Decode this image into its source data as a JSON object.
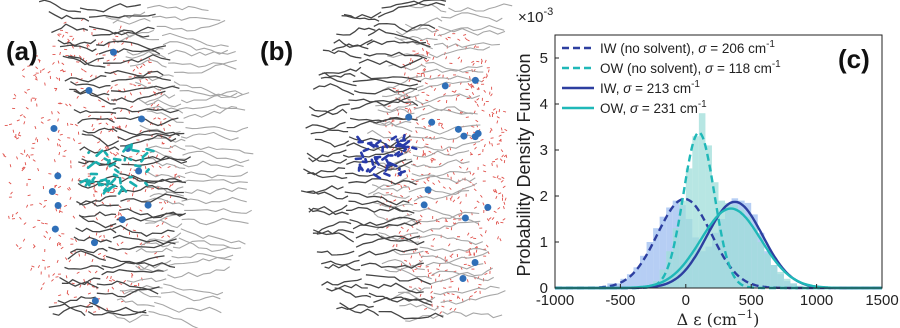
{
  "panels": {
    "a": {
      "letter": "(a)"
    },
    "b": {
      "letter": "(b)"
    },
    "c": {
      "letter": "(c)"
    }
  },
  "colors": {
    "IW": "#2d3fa0",
    "OW": "#1fb8b8",
    "IW_hist": "#9dbdf0",
    "OW_hist": "#9fded9",
    "lipid_dark": "#454545",
    "lipid_light": "#a6a6a6",
    "water": "#e0504a",
    "ion": "#2f6fb8",
    "chromophore_a": "#1aaeae",
    "chromophore_b": "#283aa8"
  },
  "chart_data": {
    "type": "histogram+pdf",
    "scale_label": "×10",
    "scale_exponent": "-3",
    "xlabel": "Δ ε (cm",
    "xlabel_exp": "−1",
    "xlabel_close": ")",
    "ylabel": "Probability Density Function",
    "xlim": [
      -1000,
      1500
    ],
    "ylim": [
      0,
      5.5
    ],
    "xticks": [
      "-1000",
      "-500",
      "0",
      "500",
      "1000",
      "1500"
    ],
    "yticks": [
      "0",
      "1",
      "2",
      "3",
      "4",
      "5"
    ],
    "legend_position": "top-right",
    "series": [
      {
        "name": "IW (no solvent), ",
        "sigma_label": "σ",
        "sigma_value": " = 206 cm",
        "exp": "-1",
        "style": "dashed",
        "color_key": "IW",
        "mean": -10,
        "sigma": 206
      },
      {
        "name": "OW (no solvent), ",
        "sigma_label": "σ",
        "sigma_value": " = 118 cm",
        "exp": "-1",
        "style": "dashed",
        "color_key": "OW",
        "mean": 100,
        "sigma": 118
      },
      {
        "name": "IW, ",
        "sigma_label": "σ",
        "sigma_value": " = 213 cm",
        "exp": "-1",
        "style": "solid",
        "color_key": "IW",
        "mean": 375,
        "sigma": 213
      },
      {
        "name": "OW, ",
        "sigma_label": "σ",
        "sigma_value": " = 231 cm",
        "exp": "-1",
        "style": "solid",
        "color_key": "OW",
        "mean": 345,
        "sigma": 231
      }
    ],
    "histograms": [
      {
        "name": "IW",
        "bin_width": 50,
        "bins": [
          -575,
          -525,
          -475,
          -425,
          -375,
          -325,
          -275,
          -225,
          -175,
          -125,
          -75,
          -25,
          25,
          75,
          125,
          175,
          225,
          275,
          325,
          375,
          425,
          475,
          525,
          575,
          625,
          675,
          725,
          775,
          825
        ],
        "densities": [
          0.1,
          0.1,
          0.2,
          0.3,
          0.45,
          0.7,
          1.0,
          1.3,
          1.55,
          1.75,
          1.9,
          1.8,
          1.5,
          1.1,
          0.8,
          0.9,
          1.2,
          1.5,
          1.8,
          1.95,
          1.9,
          1.85,
          1.6,
          1.2,
          0.8,
          0.5,
          0.3,
          0.15,
          0.1
        ]
      },
      {
        "name": "OW",
        "bin_width": 50,
        "bins": [
          -275,
          -225,
          -175,
          -125,
          -75,
          -25,
          25,
          75,
          125,
          175,
          225,
          275,
          325,
          375,
          425,
          475,
          525,
          575,
          625,
          675,
          725,
          775,
          825,
          875
        ],
        "densities": [
          0.05,
          0.15,
          0.4,
          0.8,
          1.3,
          1.9,
          2.6,
          3.3,
          3.8,
          3.1,
          2.3,
          1.9,
          1.85,
          1.8,
          1.7,
          1.55,
          1.3,
          1.0,
          0.75,
          0.5,
          0.35,
          0.2,
          0.1,
          0.05
        ]
      }
    ]
  }
}
